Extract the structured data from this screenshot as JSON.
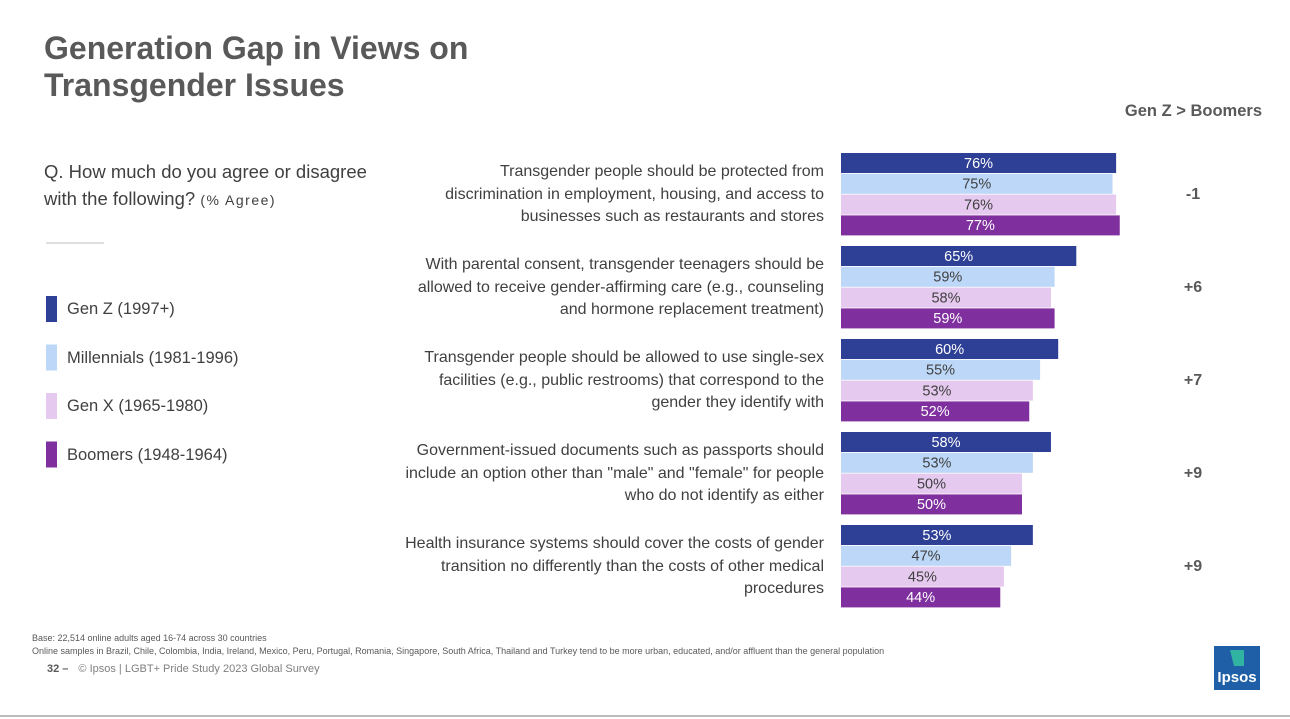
{
  "chart_data": {
    "type": "bar",
    "orientation": "horizontal",
    "title": "Generation Gap in Views on Transgender Issues",
    "question": "Q. How much do you agree or disagree with the following?",
    "question_note": "(% Agree)",
    "categories": [
      "Transgender people should be protected from discrimination in employment, housing, and access to businesses such as restaurants and stores",
      "With parental consent, transgender teenagers should be allowed to receive gender-affirming care (e.g., counseling and hormone replacement treatment)",
      "Transgender people should be allowed to use single-sex facilities (e.g., public restrooms) that correspond to the gender they identify with",
      "Government-issued documents such as passports should include an option other than \"male\" and \"female\" for people who do not identify as either",
      "Health insurance systems should cover the costs of gender transition no differently than the costs of other medical procedures"
    ],
    "series": [
      {
        "name": "Gen Z (1997+)",
        "color": "#2e3f96",
        "label_color": "#ffffff",
        "values": [
          76,
          65,
          60,
          58,
          53
        ],
        "value_labels": [
          "76%",
          "65%",
          "60%",
          "58%",
          "53%"
        ]
      },
      {
        "name": "Millennials (1981-1996)",
        "color": "#bcd7f7",
        "label_color": "#404040",
        "values": [
          75,
          59,
          55,
          53,
          47
        ],
        "value_labels": [
          "75%",
          "59%",
          "55%",
          "53%",
          "47%"
        ]
      },
      {
        "name": "Gen X (1965-1980)",
        "color": "#e5c9ee",
        "label_color": "#404040",
        "values": [
          76,
          58,
          53,
          50,
          45
        ],
        "value_labels": [
          "76%",
          "58%",
          "53%",
          "50%",
          "45%"
        ]
      },
      {
        "name": "Boomers (1948-1964)",
        "color": "#7f2f9e",
        "label_color": "#ffffff",
        "values": [
          77,
          59,
          52,
          50,
          44
        ],
        "value_labels": [
          "77%",
          "59%",
          "52%",
          "50%",
          "44%"
        ]
      }
    ],
    "xlim": [
      0,
      100
    ],
    "gap_header": "Gen Z > Boomers",
    "gap_labels": [
      "-1",
      "+6",
      "+7",
      "+9",
      "+9"
    ]
  },
  "notes": [
    "Base: 22,514 online adults aged 16-74 across 30 countries",
    "Online samples in Brazil, Chile, Colombia, India, Ireland, Mexico, Peru, Portugal, Romania, Singapore, South Africa, Thailand and Turkey tend to be more urban, educated, and/or affluent than the general population"
  ],
  "footer": {
    "page": "32 –",
    "source": "© Ipsos | LGBT+ Pride Study 2023 Global Survey",
    "logo": "Ipsos"
  }
}
